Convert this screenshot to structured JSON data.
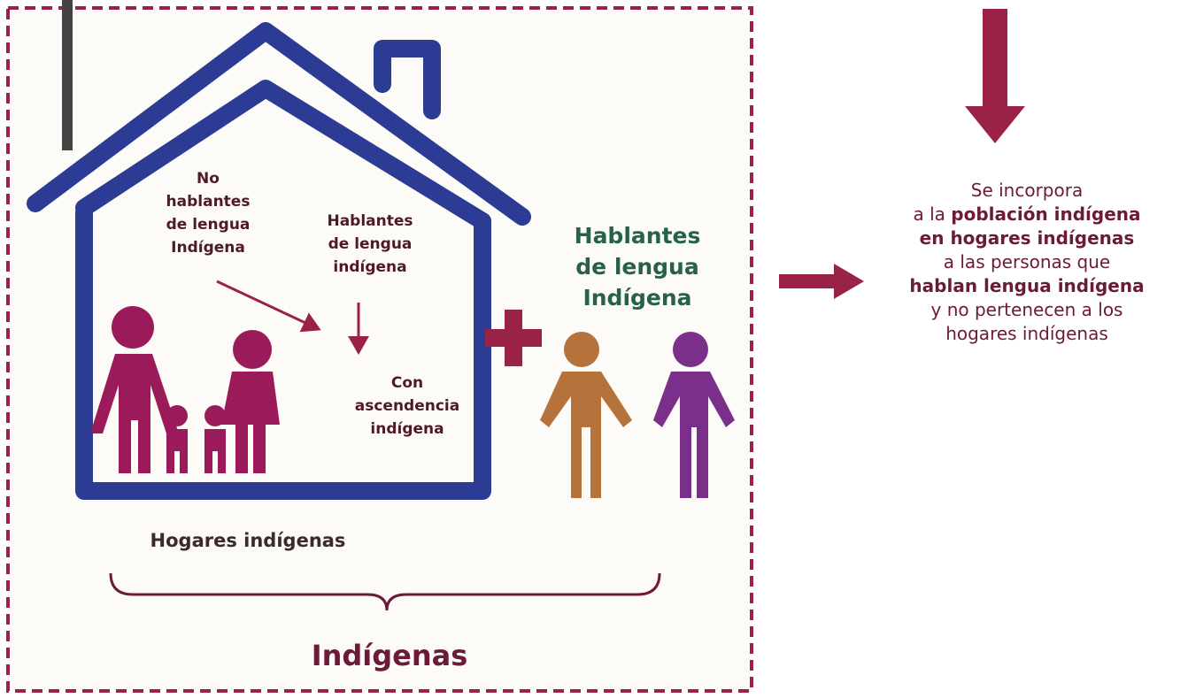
{
  "house_labels": {
    "non_speakers": [
      "No",
      "hablantes",
      "de lengua",
      "Indígena"
    ],
    "speakers": [
      "Hablantes",
      "de lengua",
      "indígena"
    ],
    "ancestry": [
      "Con",
      "ascendencia",
      "indígena"
    ]
  },
  "outside_speakers": [
    "Hablantes",
    "de lengua",
    "Indígena"
  ],
  "households_label": "Hogares indígenas",
  "total_label": "Indígenas",
  "note": {
    "lines": [
      [
        {
          "text": "Se incorpora",
          "bold": false
        }
      ],
      [
        {
          "text": "a la ",
          "bold": false
        },
        {
          "text": "población indígena",
          "bold": true
        }
      ],
      [
        {
          "text": "en hogares indígenas",
          "bold": true
        }
      ],
      [
        {
          "text": "a las personas que",
          "bold": false
        }
      ],
      [
        {
          "text": "hablan lengua indígena",
          "bold": true
        }
      ],
      [
        {
          "text": "y no pertenecen a los",
          "bold": false
        }
      ],
      [
        {
          "text": "hogares indígenas",
          "bold": false
        }
      ]
    ]
  }
}
